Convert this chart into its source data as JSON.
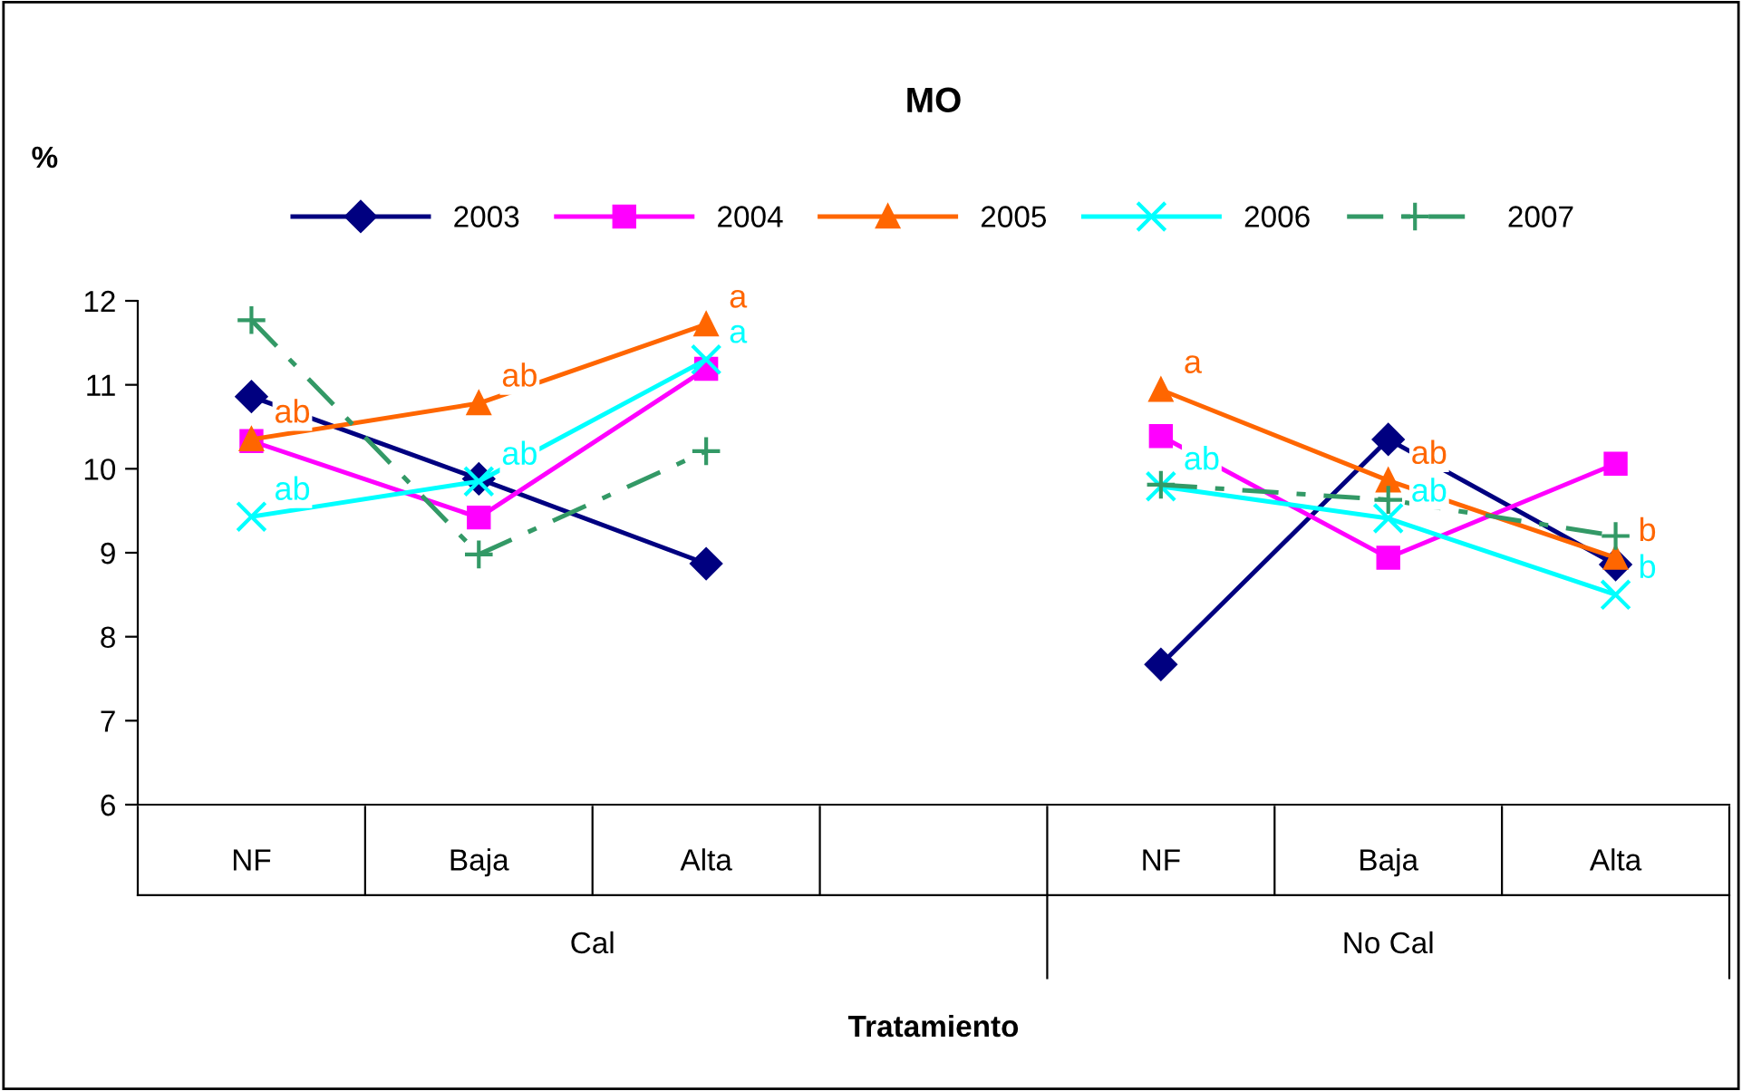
{
  "chart_data": {
    "type": "line",
    "title": "MO",
    "ylabel": "%",
    "xlabel": "Tratamiento",
    "categories": [
      "NF",
      "Baja",
      "Alta",
      null,
      "NF",
      "Baja",
      "Alta"
    ],
    "annotations": [
      "Cal",
      "No Cal"
    ],
    "ylim": [
      6,
      12
    ],
    "yticks": [
      6,
      7,
      8,
      9,
      10,
      11,
      12
    ],
    "grid": false,
    "legend": "top",
    "series": [
      {
        "name": "2003",
        "color": "#000080",
        "marker": "diamond",
        "line_style": "solid",
        "values": [
          10.86,
          9.88,
          8.87,
          null,
          7.67,
          10.35,
          8.86
        ]
      },
      {
        "name": "2004",
        "color": "#ff00ff",
        "marker": "square",
        "line_style": "solid",
        "values": [
          10.33,
          9.42,
          11.19,
          null,
          10.39,
          8.94,
          10.06
        ]
      },
      {
        "name": "2005",
        "color": "#ff6600",
        "marker": "triangle",
        "line_style": "solid",
        "values": [
          10.35,
          10.78,
          11.72,
          null,
          10.94,
          9.86,
          8.94
        ],
        "value_labels": [
          "ab",
          "ab",
          "a",
          null,
          "a",
          "ab",
          "b"
        ]
      },
      {
        "name": "2006",
        "color": "#00ffff",
        "marker": "cross",
        "line_style": "solid",
        "values": [
          9.43,
          9.85,
          11.3,
          null,
          9.79,
          9.41,
          8.5
        ],
        "value_labels": [
          "ab",
          "ab",
          "a",
          null,
          "ab",
          "ab",
          "b"
        ]
      },
      {
        "name": "2007",
        "color": "#339966",
        "marker": "cross",
        "line_style": "dashdot",
        "values": [
          11.77,
          8.98,
          10.21,
          null,
          9.81,
          9.63,
          9.2
        ]
      }
    ]
  }
}
